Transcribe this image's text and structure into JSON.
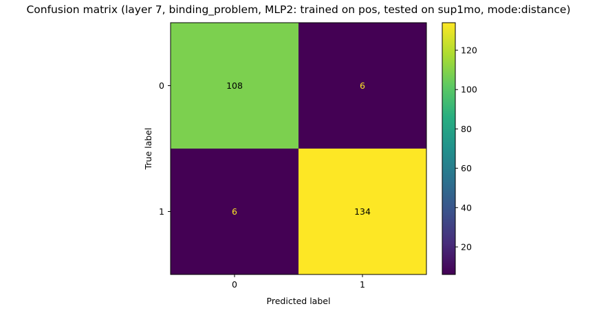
{
  "chart_data": {
    "type": "heatmap",
    "title": "Confusion matrix (layer 7, binding_problem, MLP2: trained on pos, tested on sup1mo, mode:distance)",
    "xlabel": "Predicted label",
    "ylabel": "True label",
    "x_categories": [
      "0",
      "1"
    ],
    "y_categories": [
      "0",
      "1"
    ],
    "values": [
      [
        108,
        6
      ],
      [
        6,
        134
      ]
    ],
    "colormap": "viridis",
    "colorbar": {
      "min": 6,
      "max": 134,
      "ticks": [
        20,
        40,
        60,
        80,
        100,
        120
      ],
      "tick_labels": [
        "20",
        "40",
        "60",
        "80",
        "100",
        "120"
      ]
    },
    "grid": false,
    "text_color_on_dark": "#fde725",
    "text_color_on_light": "#000000"
  }
}
